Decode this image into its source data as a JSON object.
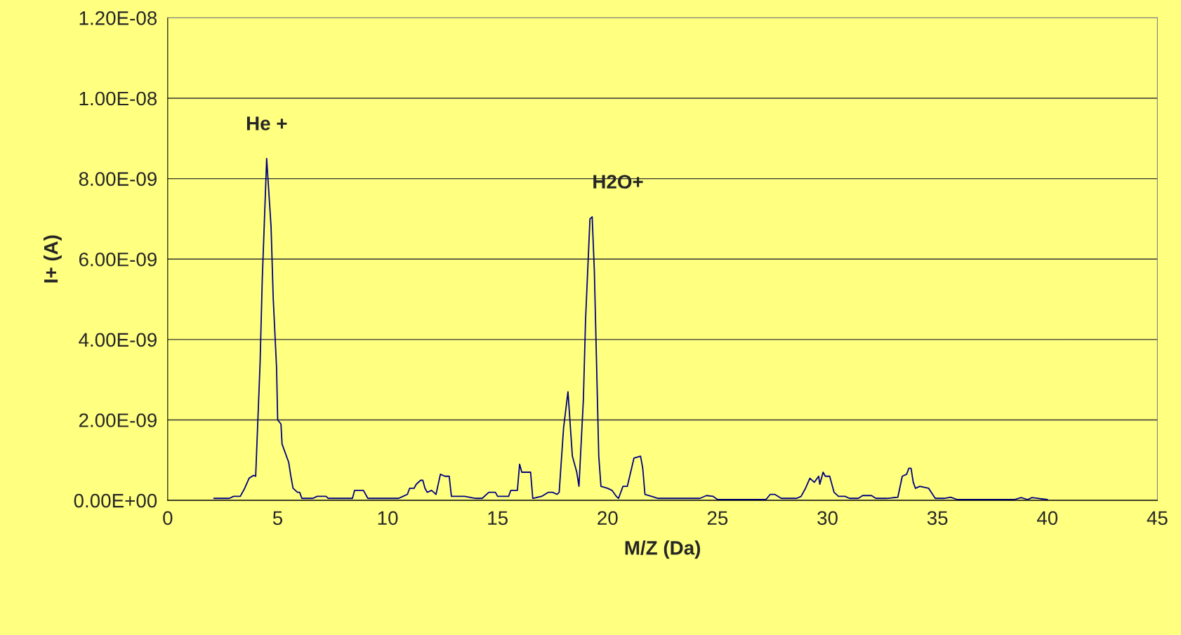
{
  "chart_data": {
    "type": "line",
    "xlabel": "M/Z (Da)",
    "ylabel": "I+ (A)",
    "x": [
      2.1,
      2.8,
      3.0,
      3.3,
      3.5,
      3.7,
      3.9,
      4.0,
      4.2,
      4.3,
      4.5,
      4.7,
      4.8,
      4.95,
      5.0,
      5.15,
      5.2,
      5.5,
      5.6,
      5.7,
      5.9,
      6.0,
      6.1,
      6.6,
      6.8,
      7.2,
      7.3,
      8.4,
      8.5,
      8.9,
      9.1,
      10.5,
      10.7,
      10.9,
      11.0,
      11.2,
      11.3,
      11.5,
      11.6,
      11.7,
      11.8,
      12.0,
      12.2,
      12.4,
      12.6,
      12.8,
      12.9,
      13.5,
      14.0,
      14.3,
      14.6,
      14.9,
      15.0,
      15.5,
      15.6,
      15.9,
      16.0,
      16.1,
      16.5,
      16.6,
      17.0,
      17.3,
      17.5,
      17.7,
      17.8,
      18.0,
      18.2,
      18.4,
      18.6,
      18.7,
      18.9,
      19.0,
      19.2,
      19.3,
      19.4,
      19.6,
      19.7,
      20.0,
      20.2,
      20.4,
      20.5,
      20.7,
      20.9,
      21.2,
      21.5,
      21.6,
      21.7,
      22.0,
      22.3,
      24.2,
      24.5,
      24.8,
      25.0,
      27.2,
      27.4,
      27.6,
      27.9,
      28.6,
      28.8,
      29.0,
      29.2,
      29.4,
      29.6,
      29.65,
      29.8,
      29.9,
      30.1,
      30.3,
      30.5,
      30.8,
      31.0,
      31.4,
      31.6,
      32.0,
      32.2,
      32.7,
      33.2,
      33.4,
      33.6,
      33.7,
      33.8,
      33.9,
      34.0,
      34.2,
      34.6,
      34.9,
      35.3,
      35.6,
      35.9,
      38.5,
      38.8,
      39.1,
      39.3,
      39.6,
      40.0
    ],
    "series": [
      {
        "color": "#000080",
        "values": [
          5e-11,
          5e-11,
          1e-10,
          1e-10,
          3e-10,
          5.5e-10,
          6.2e-10,
          6e-10,
          3.4e-09,
          5.5e-09,
          8.5e-09,
          6.8e-09,
          5e-09,
          3.3e-09,
          2e-09,
          1.9e-09,
          1.4e-09,
          9.5e-10,
          6e-10,
          3e-10,
          2e-10,
          2e-10,
          5e-11,
          5e-11,
          1e-10,
          1e-10,
          5e-11,
          5e-11,
          2.5e-10,
          2.5e-10,
          5e-11,
          5e-11,
          1e-10,
          1.5e-10,
          3e-10,
          3e-10,
          4e-10,
          5e-10,
          5e-10,
          3e-10,
          2e-10,
          2.5e-10,
          1.5e-10,
          6.5e-10,
          6e-10,
          6e-10,
          1e-10,
          1e-10,
          5e-11,
          5e-11,
          2e-10,
          2e-10,
          1e-10,
          1e-10,
          2.5e-10,
          2.5e-10,
          9e-10,
          7e-10,
          7e-10,
          5e-11,
          1e-10,
          2e-10,
          2e-10,
          1.5e-10,
          2e-10,
          1.8e-09,
          2.7e-09,
          1.1e-09,
          7e-10,
          3.5e-10,
          2.5e-09,
          4.5e-09,
          7e-09,
          7.05e-09,
          5.7e-09,
          1.1e-09,
          3.5e-10,
          3e-10,
          2.5e-10,
          1e-10,
          5e-11,
          3.5e-10,
          3.5e-10,
          1.05e-09,
          1.1e-09,
          8e-10,
          1.5e-10,
          1e-10,
          5e-11,
          5e-11,
          1.2e-10,
          1e-10,
          2e-11,
          2e-11,
          1.5e-10,
          1.5e-10,
          5e-11,
          5e-11,
          1e-10,
          3e-10,
          5.5e-10,
          4.5e-10,
          6e-10,
          4e-10,
          7e-10,
          6e-10,
          6e-10,
          2e-10,
          1e-10,
          1e-10,
          5e-11,
          5e-11,
          1.2e-10,
          1.2e-10,
          5e-11,
          5e-11,
          8e-11,
          6e-10,
          6.5e-10,
          8e-10,
          8e-10,
          4.5e-10,
          3e-10,
          3.5e-10,
          3e-10,
          5e-11,
          5e-11,
          8e-11,
          2e-11,
          2e-11,
          7e-11,
          2e-11,
          7e-11,
          5e-11,
          2e-11
        ]
      }
    ],
    "xlim": [
      0,
      45
    ],
    "xticks": [
      0,
      5,
      10,
      15,
      20,
      25,
      30,
      35,
      40,
      45
    ],
    "ylim": [
      0,
      1.2e-08
    ],
    "yticks": [
      {
        "value": 0,
        "label": "0.00E+00"
      },
      {
        "value": 2e-09,
        "label": "2.00E-09"
      },
      {
        "value": 4e-09,
        "label": "4.00E-09"
      },
      {
        "value": 6e-09,
        "label": "6.00E-09"
      },
      {
        "value": 8e-09,
        "label": "8.00E-09"
      },
      {
        "value": 1e-08,
        "label": "1.00E-08"
      },
      {
        "value": 1.2e-08,
        "label": "1.20E-08"
      }
    ],
    "grid": "y",
    "marker": "none",
    "line_style": "solid",
    "legend": false,
    "annotations": [
      {
        "text": "He +",
        "x": 4.5,
        "y": 8.5e-09
      },
      {
        "text": "H2O+",
        "x": 19.3,
        "y": 7.05e-09
      }
    ]
  }
}
